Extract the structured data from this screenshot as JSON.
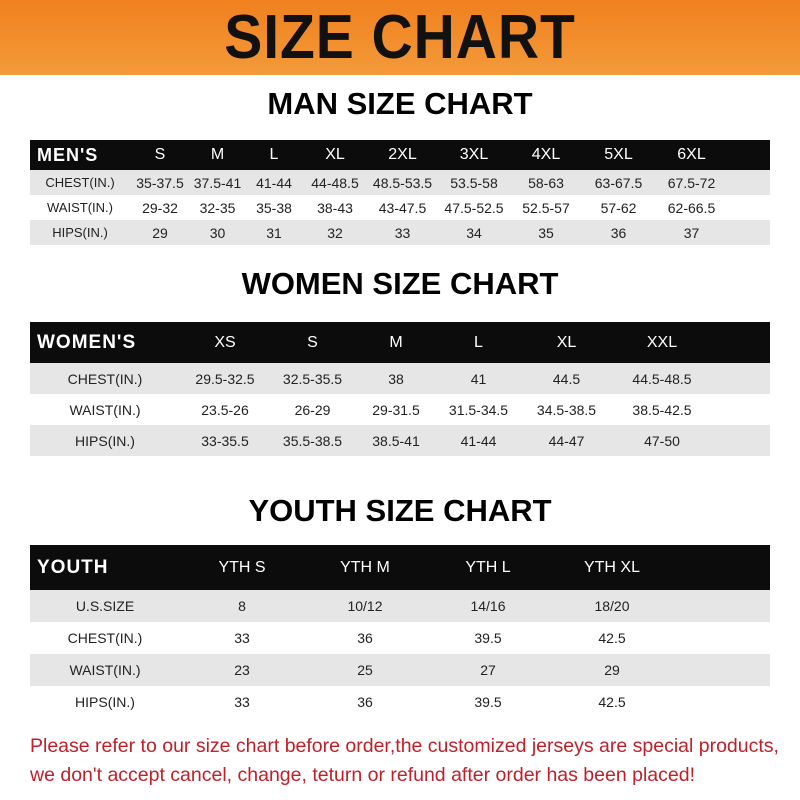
{
  "title": "SIZE CHART",
  "men": {
    "title": "MAN SIZE CHART",
    "header": [
      "MEN'S",
      "S",
      "M",
      "L",
      "XL",
      "2XL",
      "3XL",
      "4XL",
      "5XL",
      "6XL"
    ],
    "rows": [
      [
        "CHEST(IN.)",
        "35-37.5",
        "37.5-41",
        "41-44",
        "44-48.5",
        "48.5-53.5",
        "53.5-58",
        "58-63",
        "63-67.5",
        "67.5-72"
      ],
      [
        "WAIST(IN.)",
        "29-32",
        "32-35",
        "35-38",
        "38-43",
        "43-47.5",
        "47.5-52.5",
        "52.5-57",
        "57-62",
        "62-66.5"
      ],
      [
        "HIPS(IN.)",
        "29",
        "30",
        "31",
        "32",
        "33",
        "34",
        "35",
        "36",
        "37"
      ]
    ]
  },
  "women": {
    "title": "WOMEN SIZE CHART",
    "header": [
      "WOMEN'S",
      "XS",
      "S",
      "M",
      "L",
      "XL",
      "XXL"
    ],
    "rows": [
      [
        "CHEST(IN.)",
        "29.5-32.5",
        "32.5-35.5",
        "38",
        "41",
        "44.5",
        "44.5-48.5"
      ],
      [
        "WAIST(IN.)",
        "23.5-26",
        "26-29",
        "29-31.5",
        "31.5-34.5",
        "34.5-38.5",
        "38.5-42.5"
      ],
      [
        "HIPS(IN.)",
        "33-35.5",
        "35.5-38.5",
        "38.5-41",
        "41-44",
        "44-47",
        "47-50"
      ]
    ]
  },
  "youth": {
    "title": "YOUTH SIZE CHART",
    "header": [
      "YOUTH",
      "YTH S",
      "YTH M",
      "YTH L",
      "YTH XL"
    ],
    "rows": [
      [
        "U.S.SIZE",
        "8",
        "10/12",
        "14/16",
        "18/20"
      ],
      [
        "CHEST(IN.)",
        "33",
        "36",
        "39.5",
        "42.5"
      ],
      [
        "WAIST(IN.)",
        "23",
        "25",
        "27",
        "29"
      ],
      [
        "HIPS(IN.)",
        "33",
        "36",
        "39.5",
        "42.5"
      ]
    ]
  },
  "note": [
    "Please refer to our size chart before order,the customized jerseys are special products,",
    "we don't accept cancel, change, teturn or refund after order has been placed!"
  ],
  "colors": {
    "banner": "#f0801e",
    "header_row": "#0c0c0c",
    "note": "#c0202a"
  }
}
